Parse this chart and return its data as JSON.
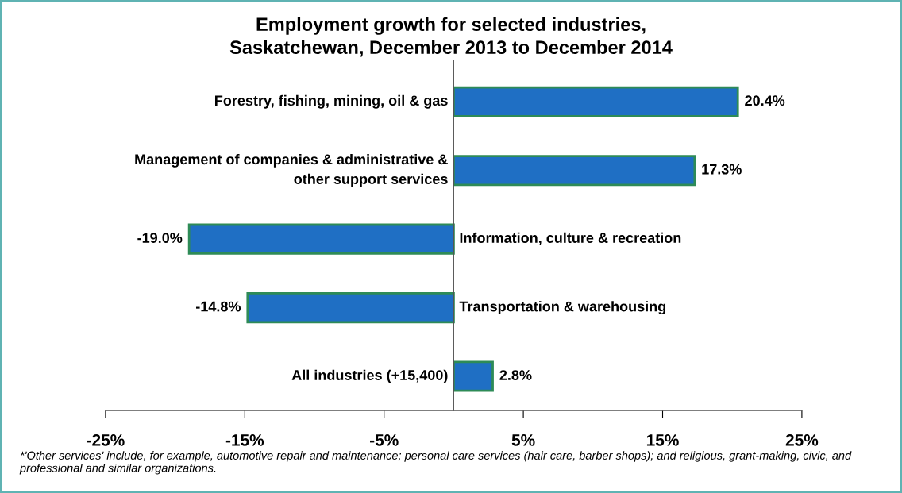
{
  "chart_data": {
    "type": "bar",
    "orientation": "horizontal",
    "title": "Employment growth for selected industries,\nSaskatchewan, December 2013 to December 2014",
    "categories": [
      "Forestry, fishing, mining, oil & gas",
      "Management of companies & administrative &\nother support services",
      "Information, culture & recreation",
      "Transportation & warehousing",
      "All industries (+15,400)"
    ],
    "values": [
      20.4,
      17.3,
      -19.0,
      -14.8,
      2.8
    ],
    "value_labels": [
      "20.4%",
      "17.3%",
      "-19.0%",
      "-14.8%",
      "2.8%"
    ],
    "color": "#1f6fc4",
    "xlim": [
      -25,
      25
    ],
    "xticks": [
      {
        "value": -25,
        "label": "-25%"
      },
      {
        "value": -15,
        "label": "-15%"
      },
      {
        "value": -5,
        "label": "-5%"
      },
      {
        "value": 5,
        "label": "5%"
      },
      {
        "value": 15,
        "label": "15%"
      },
      {
        "value": 25,
        "label": "25%"
      }
    ],
    "grid": false,
    "legend": false,
    "annotations": [
      "*'Other services' include, for example, automotive repair and maintenance; personal care services (hair care, barber shops); and religious, grant-making, civic, and professional and similar organizations."
    ]
  }
}
